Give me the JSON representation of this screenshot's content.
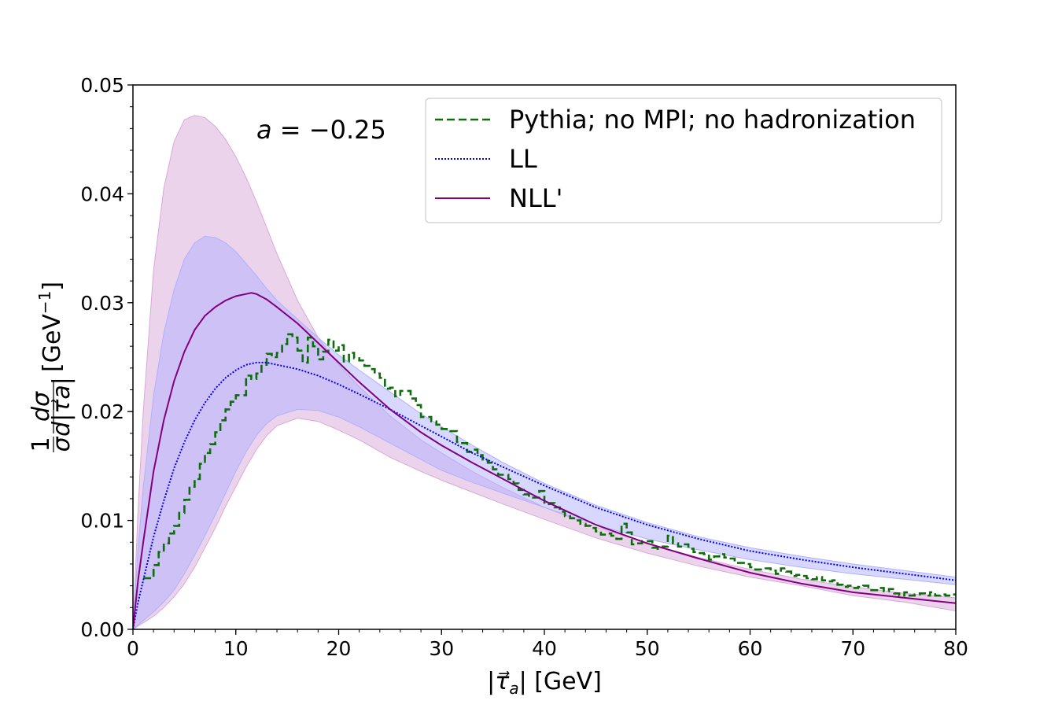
{
  "chart_data": {
    "type": "line",
    "title": "",
    "annotation": "a = −0.25",
    "annotation_parts": {
      "var": "a",
      "rest": " = −0.25"
    },
    "xlabel": "|τ⃗a| [GeV]",
    "xlabel_parts": {
      "open": "|",
      "tau": "τ⃗",
      "sub": "a",
      "close": "| [GeV]"
    },
    "ylabel": "1/σ dσ/d|τ⃗a| [GeV⁻¹]",
    "ylabel_parts": {
      "one": "1",
      "sigma": "σ",
      "dsigma": "dσ",
      "den": "d|τ⃗a|",
      "unit_open": "[GeV",
      "unit_exp": "−1",
      "unit_close": "]"
    },
    "xlim": [
      0,
      80
    ],
    "ylim": [
      0,
      0.05
    ],
    "xticks": [
      "0",
      "10",
      "20",
      "30",
      "40",
      "50",
      "60",
      "70",
      "80"
    ],
    "yticks": [
      "0.00",
      "0.01",
      "0.02",
      "0.03",
      "0.04",
      "0.05"
    ],
    "grid": false,
    "legend_position": "top-right",
    "colors": {
      "pythia": "#0b6e0b",
      "ll": "#0000ee",
      "nll": "#800080",
      "ll_band": "#b0b0ff",
      "nll_band": "#d9a8d9"
    },
    "legend": [
      {
        "key": "pythia",
        "name": "Pythia; no MPI; no hadronization",
        "style": "dashed"
      },
      {
        "key": "ll",
        "name": "LL",
        "style": "dotted"
      },
      {
        "key": "nll",
        "name": "NLL'",
        "style": "solid"
      }
    ],
    "series": [
      {
        "key": "pythia",
        "name": "Pythia; no MPI; no hadronization",
        "style": "step-dashed",
        "bin_width": 0.5,
        "x": [
          1,
          1.5,
          2,
          2.5,
          3,
          3.5,
          4,
          4.5,
          5,
          5.5,
          6,
          6.5,
          7,
          7.5,
          8,
          8.5,
          9,
          9.5,
          10,
          10.5,
          11,
          11.5,
          12,
          12.5,
          13,
          13.5,
          14,
          14.5,
          15,
          15.5,
          16,
          16.5,
          17,
          17.5,
          18,
          18.5,
          19,
          19.5,
          20,
          20.5,
          21,
          21.5,
          22,
          22.5,
          23,
          23.5,
          24,
          24.5,
          25,
          25.5,
          26,
          26.5,
          27,
          27.5,
          28,
          28.5,
          29,
          29.5,
          30,
          30.5,
          31,
          31.5,
          32,
          32.5,
          33,
          33.5,
          34,
          34.5,
          35,
          35.5,
          36,
          36.5,
          37,
          37.5,
          38,
          38.5,
          39,
          39.5,
          40,
          40.5,
          41,
          41.5,
          42,
          42.5,
          43,
          43.5,
          44,
          44.5,
          45,
          45.5,
          46,
          46.5,
          47,
          47.5,
          48,
          48.5,
          49,
          49.5,
          50,
          50.5,
          51,
          51.5,
          52,
          52.5,
          53,
          53.5,
          54,
          54.5,
          55,
          55.5,
          56,
          56.5,
          57,
          57.5,
          58,
          58.5,
          59,
          59.5,
          60,
          60.5,
          61,
          61.5,
          62,
          62.5,
          63,
          63.5,
          64,
          64.5,
          65,
          65.5,
          66,
          66.5,
          67,
          67.5,
          68,
          68.5,
          69,
          69.5,
          70,
          70.5,
          71,
          71.5,
          72,
          72.5,
          73,
          73.5,
          74,
          74.5,
          75,
          75.5,
          76,
          76.5,
          77,
          77.5,
          78,
          78.5,
          79,
          79.5
        ],
        "values": [
          0.0047,
          0.0047,
          0.0059,
          0.0071,
          0.0079,
          0.0088,
          0.0095,
          0.0107,
          0.0119,
          0.0131,
          0.0138,
          0.0152,
          0.0162,
          0.017,
          0.0181,
          0.0192,
          0.0202,
          0.0209,
          0.0215,
          0.0215,
          0.0233,
          0.023,
          0.0235,
          0.0243,
          0.0253,
          0.025,
          0.0254,
          0.0262,
          0.0271,
          0.0268,
          0.0256,
          0.0245,
          0.0268,
          0.026,
          0.0248,
          0.0255,
          0.0266,
          0.0256,
          0.0261,
          0.0246,
          0.0254,
          0.0249,
          0.0247,
          0.0242,
          0.0239,
          0.0235,
          0.0231,
          0.0221,
          0.0222,
          0.0214,
          0.0219,
          0.0219,
          0.0212,
          0.0206,
          0.0195,
          0.0195,
          0.0191,
          0.0188,
          0.0184,
          0.0182,
          0.0182,
          0.0172,
          0.0171,
          0.0163,
          0.0165,
          0.016,
          0.0155,
          0.0153,
          0.0147,
          0.0142,
          0.0142,
          0.0138,
          0.0134,
          0.0128,
          0.0124,
          0.0121,
          0.0121,
          0.0127,
          0.0115,
          0.0116,
          0.0112,
          0.0108,
          0.0104,
          0.0102,
          0.01,
          0.0097,
          0.0095,
          0.0093,
          0.009,
          0.0087,
          0.0088,
          0.0086,
          0.0083,
          0.0097,
          0.0089,
          0.0078,
          0.0079,
          0.0081,
          0.0081,
          0.0075,
          0.0074,
          0.0076,
          0.0086,
          0.0079,
          0.0076,
          0.0078,
          0.0074,
          0.0071,
          0.007,
          0.0069,
          0.0064,
          0.0067,
          0.0069,
          0.0066,
          0.0065,
          0.0061,
          0.0061,
          0.006,
          0.0057,
          0.0055,
          0.0055,
          0.0056,
          0.0054,
          0.0051,
          0.0056,
          0.0053,
          0.0049,
          0.005,
          0.0049,
          0.0047,
          0.0046,
          0.0048,
          0.0045,
          0.0044,
          0.0045,
          0.0041,
          0.0039,
          0.004,
          0.0038,
          0.0039,
          0.004,
          0.0036,
          0.0036,
          0.0038,
          0.0035,
          0.0037,
          0.0033,
          0.0031,
          0.0034,
          0.0031,
          0.0032,
          0.0033,
          0.0031,
          0.0034,
          0.0031,
          0.0032,
          0.0031,
          0.0032
        ]
      },
      {
        "key": "ll",
        "name": "LL",
        "style": "dotted",
        "x": [
          0,
          0.5,
          1,
          2,
          3,
          4,
          5,
          6,
          7,
          8,
          9,
          10,
          11,
          12,
          13,
          14,
          16,
          18,
          20,
          22,
          25,
          28,
          30,
          33,
          36,
          40,
          45,
          50,
          55,
          60,
          65,
          70,
          75,
          80
        ],
        "values": [
          0.0,
          0.0025,
          0.0045,
          0.0085,
          0.0118,
          0.0148,
          0.0172,
          0.0192,
          0.0208,
          0.0221,
          0.0231,
          0.0238,
          0.0243,
          0.0245,
          0.0245,
          0.0243,
          0.0239,
          0.0233,
          0.0225,
          0.0216,
          0.0202,
          0.0187,
          0.0177,
          0.0162,
          0.0149,
          0.0132,
          0.0112,
          0.0096,
          0.0083,
          0.0072,
          0.0064,
          0.0057,
          0.0051,
          0.0045
        ],
        "band_upper": [
          0.0,
          0.0075,
          0.013,
          0.0215,
          0.0272,
          0.0312,
          0.034,
          0.0355,
          0.0361,
          0.036,
          0.0355,
          0.0347,
          0.0336,
          0.0325,
          0.0313,
          0.0302,
          0.0285,
          0.0268,
          0.0252,
          0.0238,
          0.0218,
          0.0198,
          0.0186,
          0.0169,
          0.0153,
          0.0134,
          0.0114,
          0.0098,
          0.0085,
          0.0075,
          0.0067,
          0.006,
          0.0054,
          0.0048
        ],
        "band_lower": [
          0.0,
          0.0004,
          0.0008,
          0.0016,
          0.0025,
          0.0036,
          0.0051,
          0.0068,
          0.0086,
          0.0105,
          0.0125,
          0.0145,
          0.0163,
          0.0178,
          0.0189,
          0.0196,
          0.0202,
          0.0201,
          0.0195,
          0.0186,
          0.0171,
          0.0156,
          0.0146,
          0.0135,
          0.0125,
          0.0112,
          0.0096,
          0.0083,
          0.0073,
          0.0064,
          0.0057,
          0.0051,
          0.0046,
          0.0041
        ]
      },
      {
        "key": "nll",
        "name": "NLL'",
        "style": "solid",
        "x": [
          0,
          0.5,
          1,
          2,
          3,
          4,
          5,
          6,
          7,
          8,
          9,
          10,
          11,
          11.5,
          12,
          13,
          14,
          16,
          18,
          20,
          22,
          25,
          28,
          30,
          33,
          36,
          40,
          45,
          50,
          55,
          60,
          65,
          70,
          75,
          80
        ],
        "values": [
          0.0,
          0.0045,
          0.008,
          0.0145,
          0.0192,
          0.0228,
          0.0255,
          0.0275,
          0.0288,
          0.0296,
          0.0302,
          0.0306,
          0.0308,
          0.0309,
          0.0308,
          0.0303,
          0.0296,
          0.0281,
          0.0263,
          0.0245,
          0.0227,
          0.0202,
          0.0181,
          0.0169,
          0.0153,
          0.0138,
          0.0118,
          0.0096,
          0.0079,
          0.0065,
          0.0052,
          0.0042,
          0.0034,
          0.0029,
          0.0024
        ],
        "band_upper": [
          0.0,
          0.011,
          0.02,
          0.033,
          0.0405,
          0.0448,
          0.0468,
          0.0472,
          0.047,
          0.0462,
          0.045,
          0.0434,
          0.0415,
          0.0404,
          0.0393,
          0.0369,
          0.0345,
          0.0302,
          0.0268,
          0.0243,
          0.0223,
          0.0196,
          0.0174,
          0.0162,
          0.0145,
          0.013,
          0.0112,
          0.0094,
          0.0079,
          0.0066,
          0.0055,
          0.0046,
          0.0039,
          0.0033,
          0.0029
        ],
        "band_lower": [
          0.0,
          0.0003,
          0.0006,
          0.0012,
          0.002,
          0.003,
          0.0042,
          0.0057,
          0.0075,
          0.0093,
          0.0113,
          0.0131,
          0.0149,
          0.0157,
          0.0165,
          0.0178,
          0.0187,
          0.0194,
          0.0191,
          0.0183,
          0.0174,
          0.0158,
          0.0145,
          0.0137,
          0.0126,
          0.0115,
          0.0101,
          0.0084,
          0.007,
          0.0058,
          0.0048,
          0.004,
          0.0031,
          0.0025,
          0.0017
        ]
      }
    ]
  }
}
